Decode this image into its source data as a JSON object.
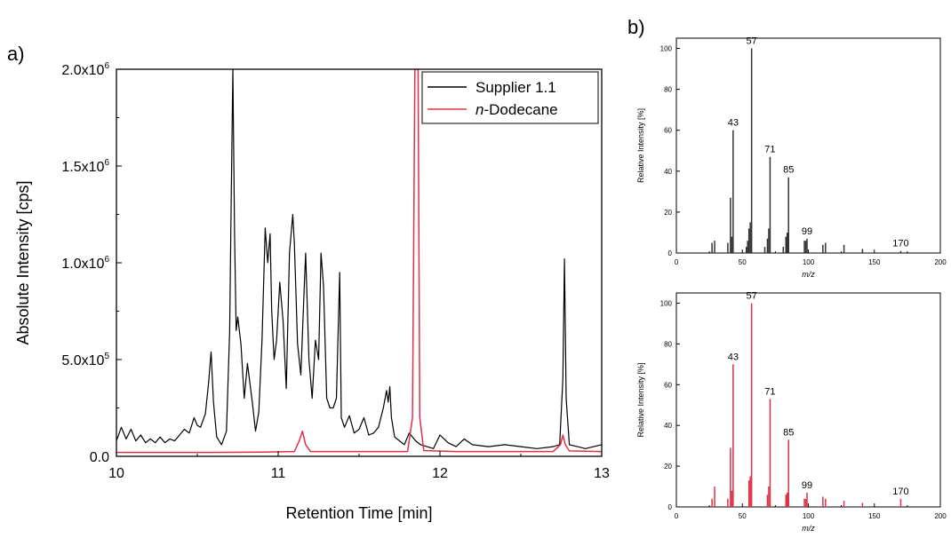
{
  "panels": {
    "a": "a)",
    "b": "b)"
  },
  "chart_data": [
    {
      "type": "line",
      "xlabel": "Retention Time [min]",
      "ylabel": "Absolute Intensity [cps]",
      "xlim": [
        10,
        13
      ],
      "ylim": [
        0,
        2000000
      ],
      "xticks": [
        10,
        11,
        12,
        13
      ],
      "yticks": [
        {
          "value": 0,
          "mantissa": "0.0",
          "exp": ""
        },
        {
          "value": 500000,
          "mantissa": "5.0x10",
          "exp": "5"
        },
        {
          "value": 1000000,
          "mantissa": "1.0x10",
          "exp": "6"
        },
        {
          "value": 1500000,
          "mantissa": "1.5x10",
          "exp": "6"
        },
        {
          "value": 2000000,
          "mantissa": "2.0x10",
          "exp": "6"
        }
      ],
      "legend_position": "top-right",
      "grid": false,
      "series": [
        {
          "name": "Supplier 1.1",
          "color": "#000000",
          "x": [
            10.0,
            10.03,
            10.06,
            10.09,
            10.12,
            10.15,
            10.18,
            10.21,
            10.24,
            10.27,
            10.3,
            10.33,
            10.36,
            10.39,
            10.42,
            10.45,
            10.48,
            10.5,
            10.52,
            10.55,
            10.57,
            10.585,
            10.6,
            10.62,
            10.65,
            10.68,
            10.7,
            10.71,
            10.72,
            10.73,
            10.74,
            10.75,
            10.77,
            10.79,
            10.81,
            10.84,
            10.86,
            10.88,
            10.9,
            10.92,
            10.935,
            10.95,
            10.96,
            10.975,
            10.99,
            11.01,
            11.03,
            11.05,
            11.07,
            11.09,
            11.1,
            11.12,
            11.14,
            11.16,
            11.17,
            11.19,
            11.21,
            11.23,
            11.25,
            11.265,
            11.28,
            11.3,
            11.32,
            11.34,
            11.36,
            11.38,
            11.39,
            11.41,
            11.44,
            11.47,
            11.5,
            11.53,
            11.56,
            11.59,
            11.62,
            11.65,
            11.67,
            11.68,
            11.69,
            11.7,
            11.72,
            11.75,
            11.78,
            11.81,
            11.85,
            11.88,
            11.92,
            11.96,
            12.0,
            12.05,
            12.1,
            12.15,
            12.2,
            12.3,
            12.4,
            12.5,
            12.6,
            12.7,
            12.74,
            12.76,
            12.77,
            12.78,
            12.8,
            12.85,
            12.9,
            12.95,
            13.0
          ],
          "y": [
            80000,
            150000,
            90000,
            140000,
            80000,
            110000,
            70000,
            90000,
            70000,
            100000,
            70000,
            90000,
            80000,
            110000,
            140000,
            120000,
            200000,
            160000,
            150000,
            220000,
            380000,
            540000,
            280000,
            100000,
            60000,
            130000,
            650000,
            1350000,
            2000000,
            1150000,
            650000,
            720000,
            580000,
            300000,
            480000,
            280000,
            130000,
            230000,
            600000,
            1180000,
            1000000,
            1150000,
            750000,
            500000,
            600000,
            900000,
            700000,
            350000,
            1050000,
            1250000,
            1100000,
            580000,
            420000,
            850000,
            1050000,
            500000,
            300000,
            600000,
            500000,
            1050000,
            880000,
            300000,
            250000,
            250000,
            300000,
            950000,
            200000,
            150000,
            210000,
            120000,
            140000,
            200000,
            110000,
            120000,
            150000,
            250000,
            340000,
            280000,
            360000,
            200000,
            100000,
            80000,
            60000,
            120000,
            80000,
            60000,
            50000,
            40000,
            110000,
            70000,
            50000,
            90000,
            60000,
            50000,
            60000,
            50000,
            40000,
            50000,
            60000,
            400000,
            1020000,
            300000,
            60000,
            50000,
            40000,
            50000,
            60000
          ]
        },
        {
          "name": "n-Dodecane",
          "name_italic": "n",
          "name_rest": "-Dodecane",
          "color": "#e03048",
          "x": [
            10.0,
            10.3,
            10.6,
            10.9,
            11.1,
            11.13,
            11.15,
            11.17,
            11.2,
            11.5,
            11.8,
            11.83,
            11.845,
            11.855,
            11.865,
            11.875,
            11.9,
            12.1,
            12.4,
            12.7,
            12.745,
            12.76,
            12.775,
            12.8,
            13.0
          ],
          "y": [
            20000,
            20000,
            20000,
            22000,
            25000,
            80000,
            130000,
            60000,
            25000,
            25000,
            25000,
            200000,
            2000000,
            2000000,
            2000000,
            200000,
            30000,
            25000,
            25000,
            25000,
            60000,
            110000,
            60000,
            28000,
            25000
          ]
        }
      ]
    },
    {
      "type": "bar",
      "xlabel": "m/z",
      "ylabel": "Relative Intensity [%]",
      "xlim": [
        0,
        200
      ],
      "ylim": [
        0,
        105
      ],
      "xticks": [
        0,
        50,
        100,
        150,
        200
      ],
      "yticks": [
        0,
        20,
        40,
        60,
        80,
        100
      ],
      "color": "#333333",
      "mz": [
        27,
        29,
        39,
        41,
        42,
        43,
        53,
        54,
        55,
        56,
        57,
        67,
        69,
        70,
        71,
        81,
        83,
        84,
        85,
        97,
        98,
        99,
        111,
        113,
        127,
        141,
        170
      ],
      "intensity": [
        5,
        6,
        5,
        27,
        8,
        60,
        3,
        6,
        12,
        15,
        100,
        3,
        7,
        12,
        47,
        3,
        8,
        10,
        37,
        6,
        6,
        7,
        4,
        5,
        4,
        2,
        1
      ],
      "labels": [
        {
          "mz": 43,
          "text": "43"
        },
        {
          "mz": 57,
          "text": "57"
        },
        {
          "mz": 71,
          "text": "71"
        },
        {
          "mz": 85,
          "text": "85"
        },
        {
          "mz": 99,
          "text": "99"
        },
        {
          "mz": 170,
          "text": "170"
        }
      ]
    },
    {
      "type": "bar",
      "xlabel": "m/z",
      "ylabel": "Relative Intensity [%]",
      "xlim": [
        0,
        200
      ],
      "ylim": [
        0,
        105
      ],
      "xticks": [
        0,
        50,
        100,
        150,
        200
      ],
      "yticks": [
        0,
        20,
        40,
        60,
        80,
        100
      ],
      "color": "#e03048",
      "mz": [
        27,
        29,
        39,
        41,
        42,
        43,
        55,
        56,
        57,
        69,
        70,
        71,
        83,
        84,
        85,
        97,
        98,
        99,
        111,
        113,
        127,
        141,
        170
      ],
      "intensity": [
        4,
        10,
        4,
        29,
        8,
        70,
        13,
        15,
        100,
        6,
        10,
        53,
        6,
        7,
        33,
        4,
        4,
        7,
        5,
        4,
        3,
        2,
        4
      ],
      "labels": [
        {
          "mz": 43,
          "text": "43"
        },
        {
          "mz": 57,
          "text": "57"
        },
        {
          "mz": 71,
          "text": "71"
        },
        {
          "mz": 85,
          "text": "85"
        },
        {
          "mz": 99,
          "text": "99"
        },
        {
          "mz": 170,
          "text": "170"
        }
      ]
    }
  ]
}
